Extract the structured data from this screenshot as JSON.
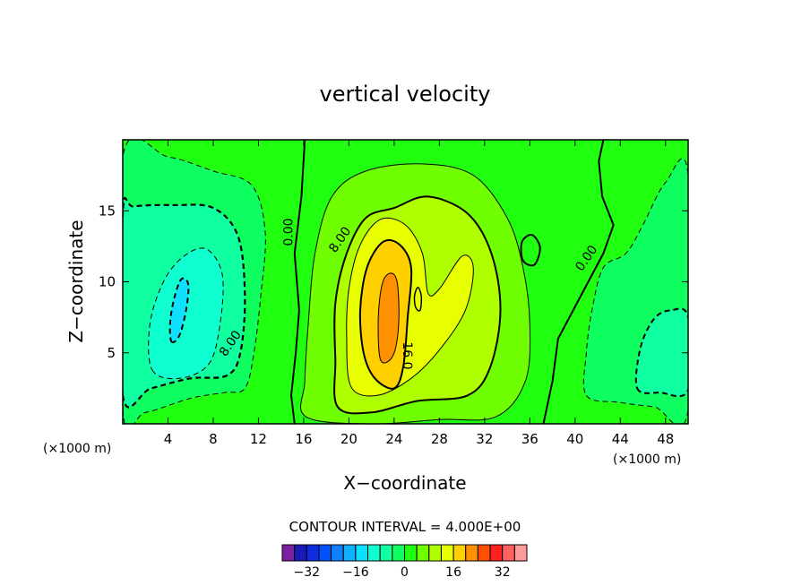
{
  "chart_data": {
    "type": "heatmap",
    "title": "vertical velocity",
    "xlabel": "X−coordinate",
    "ylabel": "Z−coordinate",
    "x_unit_left": "(×1000 m)",
    "x_unit_right": "(×1000 m)",
    "xlim": [
      0,
      50
    ],
    "ylim": [
      0,
      20
    ],
    "x_ticks": [
      4,
      8,
      12,
      16,
      20,
      24,
      28,
      32,
      36,
      40,
      44,
      48
    ],
    "y_ticks": [
      5,
      10,
      15
    ],
    "contour_interval_text": "CONTOUR INTERVAL = 4.000E+00",
    "contour_labels": [
      {
        "text": "0.00",
        "x": 15.0,
        "y": 13.5,
        "angle": -90
      },
      {
        "text": "8.00",
        "x": 19.5,
        "y": 12.8,
        "angle": -55
      },
      {
        "text": "8.00",
        "x": 9.8,
        "y": 5.5,
        "angle": -55
      },
      {
        "text": "16.0",
        "x": 24.8,
        "y": 4.8,
        "angle": 90
      },
      {
        "text": "0.00",
        "x": 41.3,
        "y": 11.5,
        "angle": -55
      }
    ],
    "colorbar": {
      "levels": [
        -36,
        -32,
        -28,
        -24,
        -20,
        -16,
        -12,
        -8,
        -4,
        0,
        4,
        8,
        12,
        16,
        20,
        24,
        28,
        32,
        36
      ],
      "colors": [
        "#7b1fa2",
        "#1a1ab8",
        "#0d2ee0",
        "#0050ff",
        "#1080ff",
        "#10b0ff",
        "#10e0ff",
        "#10ffd0",
        "#10ffa0",
        "#10ff60",
        "#20ff10",
        "#70ff00",
        "#b0ff00",
        "#e8ff00",
        "#ffd000",
        "#ff9000",
        "#ff5000",
        "#ff2020",
        "#ff6060",
        "#ff9a9a"
      ],
      "tick_labels": [
        "−32",
        "−16",
        "0",
        "16",
        "32"
      ],
      "tick_values": [
        -32,
        -16,
        0,
        16,
        32
      ]
    },
    "features": [
      {
        "kind": "updraft",
        "center": [
          24,
          7.5
        ],
        "peak": 20
      },
      {
        "kind": "downdraft",
        "center": [
          5,
          8
        ],
        "peak": -16
      },
      {
        "kind": "downdraft",
        "center": [
          47,
          5
        ],
        "peak": -8
      }
    ]
  }
}
